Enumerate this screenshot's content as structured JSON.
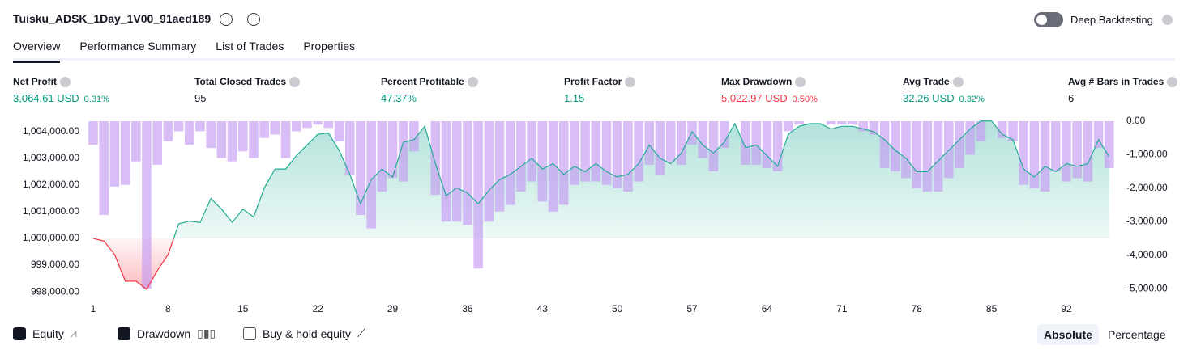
{
  "header": {
    "title": "Tuisku_ADSK_1Day_1V00_91aed189",
    "deep_backtesting": "Deep Backtesting"
  },
  "tabs": [
    "Overview",
    "Performance Summary",
    "List of Trades",
    "Properties"
  ],
  "metrics": [
    {
      "label": "Net Profit",
      "value": "3,064.61 USD",
      "pct": "0.31%",
      "tone": "positive"
    },
    {
      "label": "Total Closed Trades",
      "value": "95",
      "tone": "neutral"
    },
    {
      "label": "Percent Profitable",
      "value": "47.37%",
      "tone": "positive"
    },
    {
      "label": "Profit Factor",
      "value": "1.15",
      "tone": "positive"
    },
    {
      "label": "Max Drawdown",
      "value": "5,022.97 USD",
      "pct": "0.50%",
      "tone": "negative"
    },
    {
      "label": "Avg Trade",
      "value": "32.26 USD",
      "pct": "0.32%",
      "tone": "positive"
    },
    {
      "label": "Avg # Bars in Trades",
      "value": "6",
      "tone": "neutral"
    }
  ],
  "chart_data": {
    "type": "line",
    "x": [
      1,
      2,
      3,
      4,
      5,
      6,
      7,
      8,
      9,
      10,
      11,
      12,
      13,
      14,
      15,
      16,
      17,
      18,
      19,
      20,
      21,
      22,
      23,
      24,
      25,
      26,
      27,
      28,
      29,
      30,
      31,
      32,
      33,
      34,
      35,
      36,
      37,
      38,
      39,
      40,
      41,
      42,
      43,
      44,
      45,
      46,
      47,
      48,
      49,
      50,
      51,
      52,
      53,
      54,
      55,
      56,
      57,
      58,
      59,
      60,
      61,
      62,
      63,
      64,
      65,
      66,
      67,
      68,
      69,
      70,
      71,
      72,
      73,
      74,
      75,
      76,
      77,
      78,
      79,
      80,
      81,
      82,
      83,
      84,
      85,
      86,
      87,
      88,
      89,
      90,
      91,
      92,
      93,
      94,
      95,
      96
    ],
    "series": [
      {
        "name": "Equity",
        "type": "line",
        "color": "#22ab94",
        "negative_color": "#f23645",
        "values": [
          1000000,
          999900,
          999400,
          998400,
          998400,
          998100,
          998800,
          999400,
          1000550,
          1000650,
          1000600,
          1001500,
          1001100,
          1000600,
          1001100,
          1000800,
          1001900,
          1002600,
          1002600,
          1003100,
          1003500,
          1003900,
          1003950,
          1003300,
          1002400,
          1001300,
          1002200,
          1002600,
          1002300,
          1003600,
          1003700,
          1004200,
          1002800,
          1001600,
          1001900,
          1001700,
          1001300,
          1001800,
          1002200,
          1002400,
          1002700,
          1003000,
          1002600,
          1002800,
          1002400,
          1002700,
          1002500,
          1002800,
          1002500,
          1002300,
          1002400,
          1002800,
          1003500,
          1003000,
          1002800,
          1003200,
          1004000,
          1003500,
          1003200,
          1003600,
          1004300,
          1003400,
          1003500,
          1003100,
          1002700,
          1003900,
          1004200,
          1004300,
          1004300,
          1004100,
          1004200,
          1004200,
          1004100,
          1004000,
          1003700,
          1003300,
          1003000,
          1002500,
          1002500,
          1002900,
          1003300,
          1003700,
          1004100,
          1004400,
          1004400,
          1003900,
          1003700,
          1002600,
          1002300,
          1002700,
          1002500,
          1002800,
          1002700,
          1002800,
          1003700,
          1003064.61
        ]
      },
      {
        "name": "Drawdown",
        "type": "bar",
        "axis": "y2",
        "color": "#c59af2",
        "values": [
          -700,
          -2800,
          -1950,
          -1900,
          -1200,
          -5000,
          -1300,
          -600,
          -300,
          -700,
          -300,
          -800,
          -1100,
          -1200,
          -900,
          -1100,
          -500,
          -400,
          -1100,
          -300,
          -200,
          -100,
          -200,
          -600,
          -1600,
          -2800,
          -3200,
          -2100,
          -1700,
          -1800,
          -900,
          0,
          -2200,
          -3000,
          -3000,
          -3100,
          -4400,
          -3000,
          -2700,
          -2500,
          -2100,
          -1800,
          -2400,
          -2700,
          -2500,
          -1900,
          -1800,
          -1800,
          -1900,
          -2000,
          -2100,
          -1800,
          -1300,
          -1600,
          -1200,
          -1300,
          -700,
          -1100,
          -1500,
          -800,
          0,
          -1300,
          -1300,
          -1400,
          -1500,
          -300,
          -100,
          0,
          0,
          -100,
          -100,
          -100,
          -300,
          -400,
          -1400,
          -1500,
          -1700,
          -2000,
          -2100,
          -2100,
          -1700,
          -1400,
          -1000,
          -600,
          0,
          -500,
          -600,
          -1900,
          -2000,
          -2100,
          -1500,
          -1800,
          -1700,
          -1800,
          -800,
          -1400
        ]
      }
    ],
    "xlim": [
      0.47,
      96.7
    ],
    "xticks": [
      1,
      8,
      15,
      22,
      29,
      36,
      43,
      50,
      57,
      64,
      71,
      78,
      85,
      92
    ],
    "ylim": [
      997670,
      1004390
    ],
    "yticks": [
      {
        "value": 998000,
        "label": "998,000.00"
      },
      {
        "value": 999000,
        "label": "999,000.00"
      },
      {
        "value": 1000000,
        "label": "1,000,000.00"
      },
      {
        "value": 1001000,
        "label": "1,001,000.00"
      },
      {
        "value": 1002000,
        "label": "1,002,000.00"
      },
      {
        "value": 1003000,
        "label": "1,003,000.00"
      },
      {
        "value": 1004000,
        "label": "1,004,000.00"
      }
    ],
    "y2lim": [
      -5360,
      0
    ],
    "y2ticks": [
      {
        "value": -5000,
        "label": "-5,000.00"
      },
      {
        "value": -4000,
        "label": "-4,000.00"
      },
      {
        "value": -3000,
        "label": "-3,000.00"
      },
      {
        "value": -2000,
        "label": "-2,000.00"
      },
      {
        "value": -1000,
        "label": "-1,000.00"
      },
      {
        "value": 0,
        "label": "0.00"
      }
    ]
  },
  "toggles": {
    "buy_hold": "Buy & hold equity"
  },
  "modes": [
    "Absolute",
    "Percentage"
  ]
}
